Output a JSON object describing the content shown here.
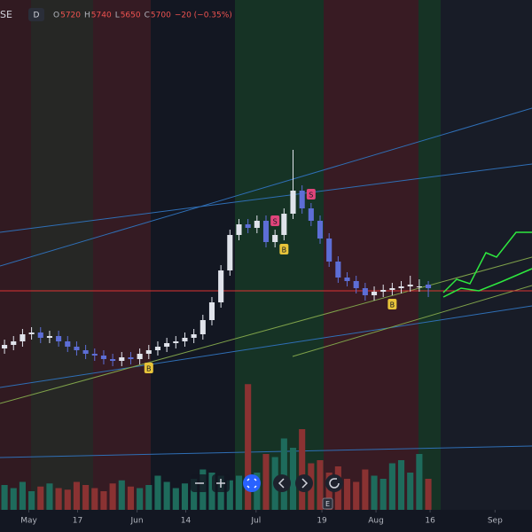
{
  "header": {
    "symbol": "SE",
    "interval": "D",
    "items": [
      {
        "label": "O",
        "value": "5720"
      },
      {
        "label": "H",
        "value": "5740"
      },
      {
        "label": "L",
        "value": "5650"
      },
      {
        "label": "C",
        "value": "5700"
      }
    ],
    "change": "−20 (−0.35%)"
  },
  "chart_data": {
    "type": "candlestick",
    "xlim": [
      -0.5,
      58.5
    ],
    "xticks": [
      {
        "value": 2.7,
        "label": "May"
      },
      {
        "value": 8.1,
        "label": "17"
      },
      {
        "value": 14.7,
        "label": "Jun"
      },
      {
        "value": 20.1,
        "label": "14"
      },
      {
        "value": 27.9,
        "label": "Jul"
      },
      {
        "value": 35.2,
        "label": "19"
      },
      {
        "value": 41.2,
        "label": "Aug"
      },
      {
        "value": 47.2,
        "label": "16"
      },
      {
        "value": 54.4,
        "label": "Sep"
      }
    ],
    "ylim": [
      4325,
      7325
    ],
    "y2lim": [
      0,
      500
    ],
    "up_color": "#e0e3eb",
    "down_color": "#5d6ed6",
    "volume_up_color": "#1e6b5c",
    "volume_down_color": "#8a3232",
    "open": [
      5360,
      5380,
      5400,
      5440,
      5450,
      5420,
      5430,
      5400,
      5370,
      5350,
      5330,
      5320,
      5300,
      5290,
      5310,
      5300,
      5330,
      5350,
      5370,
      5390,
      5400,
      5420,
      5440,
      5520,
      5620,
      5800,
      6000,
      6060,
      6040,
      6080,
      5960,
      6000,
      6120,
      6250,
      6150,
      6080,
      5980,
      5850,
      5760,
      5740,
      5700,
      5660,
      5680,
      5690,
      5700,
      5710,
      5710,
      5720
    ],
    "high": [
      5410,
      5430,
      5470,
      5480,
      5480,
      5460,
      5460,
      5430,
      5400,
      5380,
      5360,
      5350,
      5330,
      5340,
      5340,
      5360,
      5380,
      5400,
      5420,
      5430,
      5450,
      5470,
      5550,
      5650,
      5830,
      6030,
      6090,
      6090,
      6110,
      6110,
      6030,
      6150,
      6480,
      6280,
      6180,
      6110,
      6010,
      5880,
      5790,
      5770,
      5730,
      5710,
      5720,
      5730,
      5740,
      5770,
      5750,
      5740
    ],
    "low": [
      5330,
      5350,
      5370,
      5410,
      5390,
      5390,
      5370,
      5340,
      5320,
      5300,
      5290,
      5270,
      5260,
      5260,
      5270,
      5270,
      5300,
      5320,
      5340,
      5360,
      5370,
      5390,
      5410,
      5490,
      5590,
      5770,
      5970,
      6010,
      6010,
      5930,
      5930,
      5970,
      6090,
      6120,
      6050,
      5950,
      5820,
      5730,
      5710,
      5670,
      5630,
      5630,
      5650,
      5660,
      5670,
      5680,
      5680,
      5650
    ],
    "close": [
      5380,
      5400,
      5440,
      5450,
      5420,
      5430,
      5400,
      5370,
      5350,
      5330,
      5320,
      5300,
      5290,
      5310,
      5300,
      5330,
      5350,
      5370,
      5390,
      5400,
      5420,
      5440,
      5520,
      5620,
      5800,
      6000,
      6060,
      6040,
      6080,
      5960,
      6000,
      6120,
      6250,
      6150,
      6080,
      5980,
      5850,
      5760,
      5740,
      5700,
      5660,
      5680,
      5690,
      5700,
      5710,
      5720,
      5710,
      5700
    ],
    "volume": [
      80,
      70,
      90,
      60,
      75,
      85,
      70,
      65,
      90,
      80,
      70,
      60,
      85,
      95,
      75,
      70,
      80,
      110,
      90,
      70,
      85,
      100,
      130,
      120,
      110,
      95,
      110,
      405,
      120,
      180,
      170,
      230,
      200,
      260,
      150,
      160,
      120,
      140,
      100,
      90,
      130,
      110,
      100,
      150,
      160,
      120,
      180,
      100
    ],
    "markers": [
      {
        "label": "S",
        "index": 30,
        "color": "#e0457b"
      },
      {
        "label": "S",
        "index": 34,
        "color": "#e0457b"
      },
      {
        "label": "B",
        "index": 31,
        "color": "#e8c43a"
      },
      {
        "label": "B",
        "index": 16,
        "color": "#e8c43a"
      },
      {
        "label": "B",
        "index": 43,
        "color": "#e8c43a"
      }
    ],
    "earnings": "E"
  }
}
